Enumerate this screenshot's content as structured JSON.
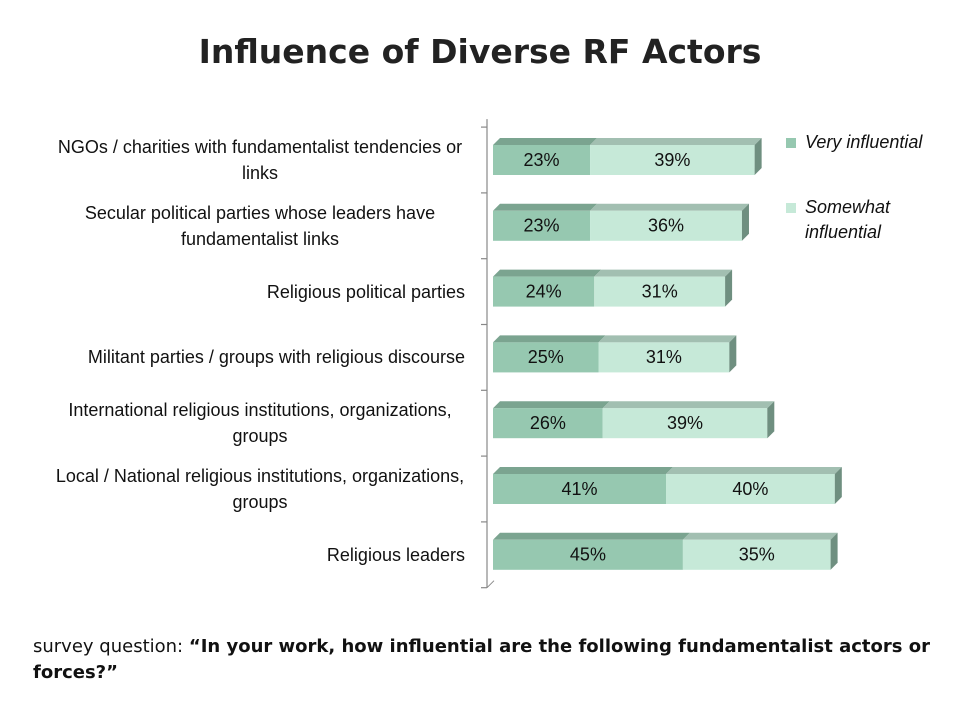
{
  "chart_data": {
    "type": "stacked-bar-horizontal",
    "title": "Influence of Diverse RF Actors",
    "categories": [
      "NGOs / charities with fundamentalist tendencies or links",
      "Secular political parties whose leaders have fundamentalist links",
      "Religious political parties",
      "Militant parties / groups with religious discourse",
      "International religious institutions, organizations, groups",
      "Local / National religious institutions, organizations, groups",
      "Religious leaders"
    ],
    "series": [
      {
        "name": "Very influential",
        "color": "#96c8b0",
        "values": [
          23,
          23,
          24,
          25,
          26,
          41,
          45
        ],
        "value_labels": [
          "23%",
          "23%",
          "24%",
          "25%",
          "26%",
          "41%",
          "45%"
        ]
      },
      {
        "name": "Somewhat influential",
        "color": "#c6e9d8",
        "values": [
          39,
          36,
          31,
          31,
          39,
          40,
          35
        ],
        "value_labels": [
          "39%",
          "36%",
          "31%",
          "31%",
          "39%",
          "40%",
          "35%"
        ]
      }
    ],
    "legend": "right",
    "note_label": "survey question:",
    "note_quote": "“In your work, how influential are the following fundamentalist actors or forces?”"
  }
}
